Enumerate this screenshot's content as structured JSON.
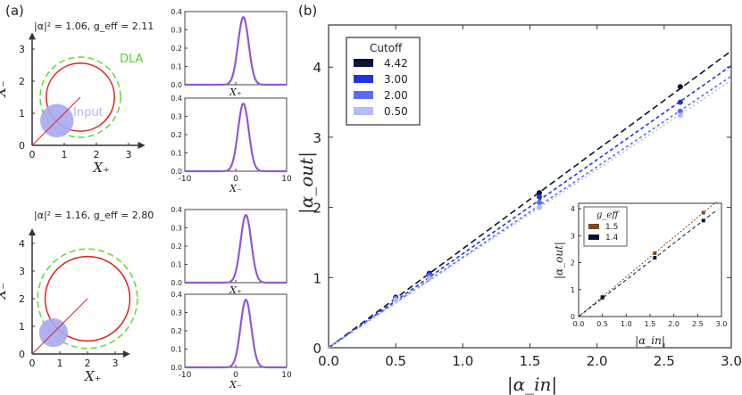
{
  "panel_a": {
    "label": "(a)",
    "top": {
      "param_text": "|α|² = 1.06, g_eff = 2.11",
      "abs_alpha_sq": 1.06,
      "g_eff": 2.11,
      "dla_label": "DLA",
      "input_label": "Input",
      "xlabel": "X₊",
      "ylabel": "X₋",
      "xticks": [
        "0",
        "1",
        "2",
        "3"
      ],
      "yticks": [
        "0",
        "1",
        "2",
        "3"
      ],
      "ring_radius": 1.06,
      "ring_center": [
        1.5,
        1.5
      ],
      "dla_radius": 1.25,
      "input_center": [
        0.77,
        0.77
      ],
      "input_radius": 0.52,
      "marginals": [
        {
          "xlabel": "X₊",
          "yticks": [
            "0.0",
            "0.1",
            "0.2",
            "0.3",
            "0.4"
          ],
          "xticks": [
            "",
            "",
            ""
          ],
          "peak": 0.37,
          "mean": 1.5,
          "sigma": 1.05
        },
        {
          "xlabel": "X₋",
          "yticks": [
            "0.0",
            "0.1",
            "0.2",
            "0.3",
            "0.4"
          ],
          "xticks": [
            "-10",
            "0",
            "10"
          ],
          "peak": 0.37,
          "mean": 1.5,
          "sigma": 1.05
        }
      ]
    },
    "bottom": {
      "param_text": "|α|² = 1.16, g_eff = 2.80",
      "abs_alpha_sq": 1.16,
      "g_eff": 2.8,
      "xlabel": "X₊",
      "ylabel": "X₋",
      "xticks": [
        "0",
        "1",
        "2",
        "3"
      ],
      "yticks": [
        "0",
        "1",
        "2",
        "3",
        "4"
      ],
      "ring_radius": 1.53,
      "ring_center": [
        2.0,
        2.0
      ],
      "dla_radius": 1.8,
      "input_center": [
        0.77,
        0.77
      ],
      "input_radius": 0.52,
      "marginals": [
        {
          "xlabel": "X₊",
          "yticks": [
            "0.0",
            "0.1",
            "0.2",
            "0.3",
            "0.4"
          ],
          "xticks": [
            "",
            "",
            ""
          ],
          "peak": 0.37,
          "mean": 2.0,
          "sigma": 1.05
        },
        {
          "xlabel": "X₋",
          "yticks": [
            "0.0",
            "0.1",
            "0.2",
            "0.3",
            "0.4"
          ],
          "xticks": [
            "-10",
            "0",
            "10"
          ],
          "peak": 0.37,
          "mean": 2.0,
          "sigma": 1.05
        }
      ]
    }
  },
  "panel_b": {
    "label": "(b)"
  },
  "chart_data": {
    "type": "scatter",
    "title": "",
    "xlabel": "|α_in|",
    "ylabel": "|α_out|",
    "xlim": [
      0,
      3.0
    ],
    "ylim": [
      0,
      4.6
    ],
    "xticks": [
      "0.0",
      "0.5",
      "1.0",
      "1.5",
      "2.0",
      "2.5",
      "3.0"
    ],
    "yticks": [
      "0",
      "1",
      "2",
      "3",
      "4"
    ],
    "legend_title": "Cutoff",
    "legend_position": "top-left",
    "series": [
      {
        "name": "4.42",
        "color": "#0b1235",
        "slope": 1.41,
        "x": [
          0.5,
          0.75,
          1.57,
          2.62
        ],
        "y": [
          0.72,
          1.06,
          2.21,
          3.72
        ]
      },
      {
        "name": "3.00",
        "color": "#1f33e6",
        "slope": 1.34,
        "x": [
          0.5,
          0.75,
          1.57,
          2.62
        ],
        "y": [
          0.71,
          1.05,
          2.15,
          3.5
        ]
      },
      {
        "name": "2.00",
        "color": "#5a6cf0",
        "slope": 1.29,
        "x": [
          0.5,
          0.75,
          1.57,
          2.62
        ],
        "y": [
          0.7,
          1.02,
          2.07,
          3.37
        ]
      },
      {
        "name": "0.50",
        "color": "#b4bcf5",
        "slope": 1.27,
        "x": [
          0.5,
          0.75,
          1.57,
          2.62
        ],
        "y": [
          0.68,
          0.99,
          2.0,
          3.31
        ]
      }
    ],
    "inset": {
      "type": "scatter",
      "xlabel": "|α_in|",
      "ylabel": "|α_out|",
      "xlim": [
        0,
        3.0
      ],
      "ylim": [
        0,
        4.2
      ],
      "xticks": [
        "0.0",
        "0.5",
        "1.0",
        "1.5",
        "2.0",
        "2.5",
        "3.0"
      ],
      "yticks": [
        "0",
        "1",
        "2",
        "3",
        "4"
      ],
      "legend_title": "g_eff",
      "series": [
        {
          "name": "1.5",
          "color": "#7a4a1e",
          "slope": 1.47,
          "x": [
            0.5,
            1.6,
            2.62
          ],
          "y": [
            0.73,
            2.35,
            3.85
          ]
        },
        {
          "name": "1.4",
          "color": "#0b1235",
          "slope": 1.36,
          "x": [
            0.5,
            1.6,
            2.62
          ],
          "y": [
            0.7,
            2.18,
            3.56
          ]
        }
      ]
    }
  }
}
